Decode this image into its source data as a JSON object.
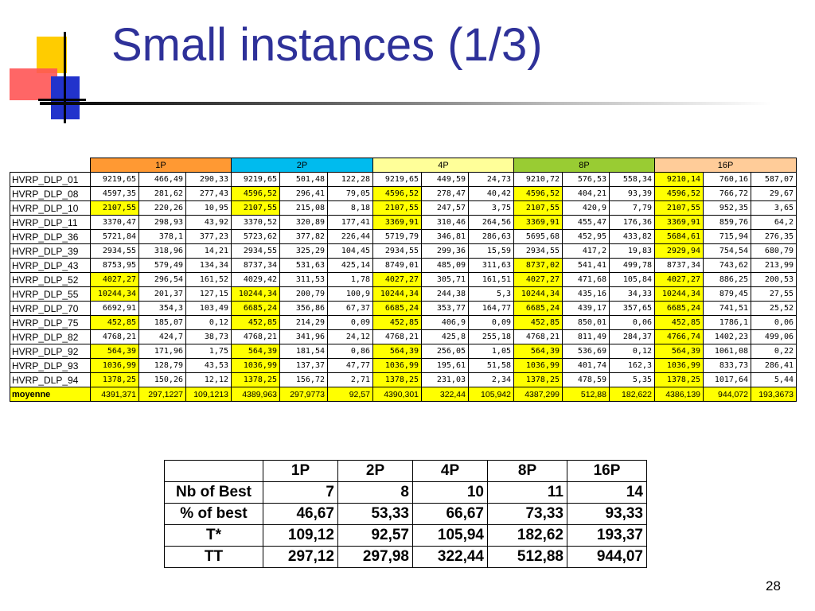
{
  "slide": {
    "title": "Small instances (1/3)",
    "number": "28"
  },
  "main_table": {
    "groups": [
      {
        "label": "1P",
        "color": "#ff9933"
      },
      {
        "label": "2P",
        "color": "#00bbee"
      },
      {
        "label": "4P",
        "color": "#ffff99"
      },
      {
        "label": "8P",
        "color": "#99cc33"
      },
      {
        "label": "16P",
        "color": "#ffcc99"
      }
    ],
    "rows": [
      {
        "name": "HVRP_DLP_01",
        "cells": [
          "9219,65",
          "466,49",
          "290,33",
          "9219,65",
          "501,48",
          "122,28",
          "9219,65",
          "449,59",
          "24,73",
          "9210,72",
          "576,53",
          "558,34",
          "9210,14",
          "760,16",
          "587,07"
        ],
        "hl": [
          12
        ]
      },
      {
        "name": "HVRP_DLP_08",
        "cells": [
          "4597,35",
          "281,62",
          "277,43",
          "4596,52",
          "296,41",
          "79,05",
          "4596,52",
          "278,47",
          "40,42",
          "4596,52",
          "404,21",
          "93,39",
          "4596,52",
          "766,72",
          "29,67"
        ],
        "hl": [
          3,
          6,
          9,
          12
        ]
      },
      {
        "name": "HVRP_DLP_10",
        "cells": [
          "2107,55",
          "220,26",
          "10,95",
          "2107,55",
          "215,08",
          "8,18",
          "2107,55",
          "247,57",
          "3,75",
          "2107,55",
          "420,9",
          "7,79",
          "2107,55",
          "952,35",
          "3,65"
        ],
        "hl": [
          0,
          3,
          6,
          9,
          12
        ]
      },
      {
        "name": "HVRP_DLP_11",
        "cells": [
          "3370,47",
          "298,93",
          "43,92",
          "3370,52",
          "320,89",
          "177,41",
          "3369,91",
          "310,46",
          "264,56",
          "3369,91",
          "455,47",
          "176,36",
          "3369,91",
          "859,76",
          "64,2"
        ],
        "hl": [
          6,
          9,
          12
        ]
      },
      {
        "name": "HVRP_DLP_36",
        "cells": [
          "5721,84",
          "378,1",
          "377,23",
          "5723,62",
          "377,82",
          "226,44",
          "5719,79",
          "346,81",
          "286,63",
          "5695,68",
          "452,95",
          "433,82",
          "5684,61",
          "715,94",
          "276,35"
        ],
        "hl": [
          12
        ]
      },
      {
        "name": "HVRP_DLP_39",
        "cells": [
          "2934,55",
          "318,96",
          "14,21",
          "2934,55",
          "325,29",
          "104,45",
          "2934,55",
          "299,36",
          "15,59",
          "2934,55",
          "417,2",
          "19,83",
          "2929,94",
          "754,54",
          "680,79"
        ],
        "hl": [
          12
        ]
      },
      {
        "name": "HVRP_DLP_43",
        "cells": [
          "8753,95",
          "579,49",
          "134,34",
          "8737,34",
          "531,63",
          "425,14",
          "8749,01",
          "485,09",
          "311,63",
          "8737,02",
          "541,41",
          "499,78",
          "8737,34",
          "743,62",
          "213,99"
        ],
        "hl": [
          9
        ]
      },
      {
        "name": "HVRP_DLP_52",
        "cells": [
          "4027,27",
          "296,54",
          "161,52",
          "4029,42",
          "311,53",
          "1,78",
          "4027,27",
          "305,71",
          "161,51",
          "4027,27",
          "471,68",
          "105,84",
          "4027,27",
          "886,25",
          "200,53"
        ],
        "hl": [
          0,
          6,
          9,
          12
        ]
      },
      {
        "name": "HVRP_DLP_55",
        "cells": [
          "10244,34",
          "201,37",
          "127,15",
          "10244,34",
          "200,79",
          "100,9",
          "10244,34",
          "244,38",
          "5,3",
          "10244,34",
          "435,16",
          "34,33",
          "10244,34",
          "879,45",
          "27,55"
        ],
        "hl": [
          0,
          3,
          6,
          9,
          12
        ]
      },
      {
        "name": "HVRP_DLP_70",
        "cells": [
          "6692,91",
          "354,3",
          "103,49",
          "6685,24",
          "356,86",
          "67,37",
          "6685,24",
          "353,77",
          "164,77",
          "6685,24",
          "439,17",
          "357,65",
          "6685,24",
          "741,51",
          "25,52"
        ],
        "hl": [
          3,
          6,
          9,
          12
        ]
      },
      {
        "name": "HVRP_DLP_75",
        "cells": [
          "452,85",
          "185,07",
          "0,12",
          "452,85",
          "214,29",
          "0,09",
          "452,85",
          "406,9",
          "0,09",
          "452,85",
          "850,01",
          "0,06",
          "452,85",
          "1786,1",
          "0,06"
        ],
        "hl": [
          0,
          3,
          6,
          9,
          12
        ]
      },
      {
        "name": "HVRP_DLP_82",
        "cells": [
          "4768,21",
          "424,7",
          "38,73",
          "4768,21",
          "341,96",
          "24,12",
          "4768,21",
          "425,8",
          "255,18",
          "4768,21",
          "811,49",
          "284,37",
          "4766,74",
          "1402,23",
          "499,06"
        ],
        "hl": [
          12
        ]
      },
      {
        "name": "HVRP_DLP_92",
        "cells": [
          "564,39",
          "171,96",
          "1,75",
          "564,39",
          "181,54",
          "0,86",
          "564,39",
          "256,05",
          "1,05",
          "564,39",
          "536,69",
          "0,12",
          "564,39",
          "1061,08",
          "0,22"
        ],
        "hl": [
          0,
          3,
          6,
          9,
          12
        ]
      },
      {
        "name": "HVRP_DLP_93",
        "cells": [
          "1036,99",
          "128,79",
          "43,53",
          "1036,99",
          "137,37",
          "47,77",
          "1036,99",
          "195,61",
          "51,58",
          "1036,99",
          "401,74",
          "162,3",
          "1036,99",
          "833,73",
          "286,41"
        ],
        "hl": [
          0,
          3,
          6,
          9,
          12
        ]
      },
      {
        "name": "HVRP_DLP_94",
        "cells": [
          "1378,25",
          "150,26",
          "12,12",
          "1378,25",
          "156,72",
          "2,71",
          "1378,25",
          "231,03",
          "2,34",
          "1378,25",
          "478,59",
          "5,35",
          "1378,25",
          "1017,64",
          "5,44"
        ],
        "hl": [
          0,
          3,
          6,
          9,
          12
        ]
      }
    ],
    "average": {
      "name": "moyenne",
      "cells": [
        "4391,371",
        "297,1227",
        "109,1213",
        "4389,963",
        "297,9773",
        "92,57",
        "4390,301",
        "322,44",
        "105,942",
        "4387,299",
        "512,88",
        "182,622",
        "4386,139",
        "944,072",
        "193,3673"
      ]
    }
  },
  "summary_table": {
    "headers": [
      "1P",
      "2P",
      "4P",
      "8P",
      "16P"
    ],
    "rows": [
      {
        "label": "Nb of Best",
        "values": [
          "7",
          "8",
          "10",
          "11",
          "14"
        ]
      },
      {
        "label": "% of best",
        "values": [
          "46,67",
          "53,33",
          "66,67",
          "73,33",
          "93,33"
        ]
      },
      {
        "label": "T*",
        "values": [
          "109,12",
          "92,57",
          "105,94",
          "182,62",
          "193,37"
        ]
      },
      {
        "label": "TT",
        "values": [
          "297,12",
          "297,98",
          "322,44",
          "512,88",
          "944,07"
        ]
      }
    ]
  }
}
